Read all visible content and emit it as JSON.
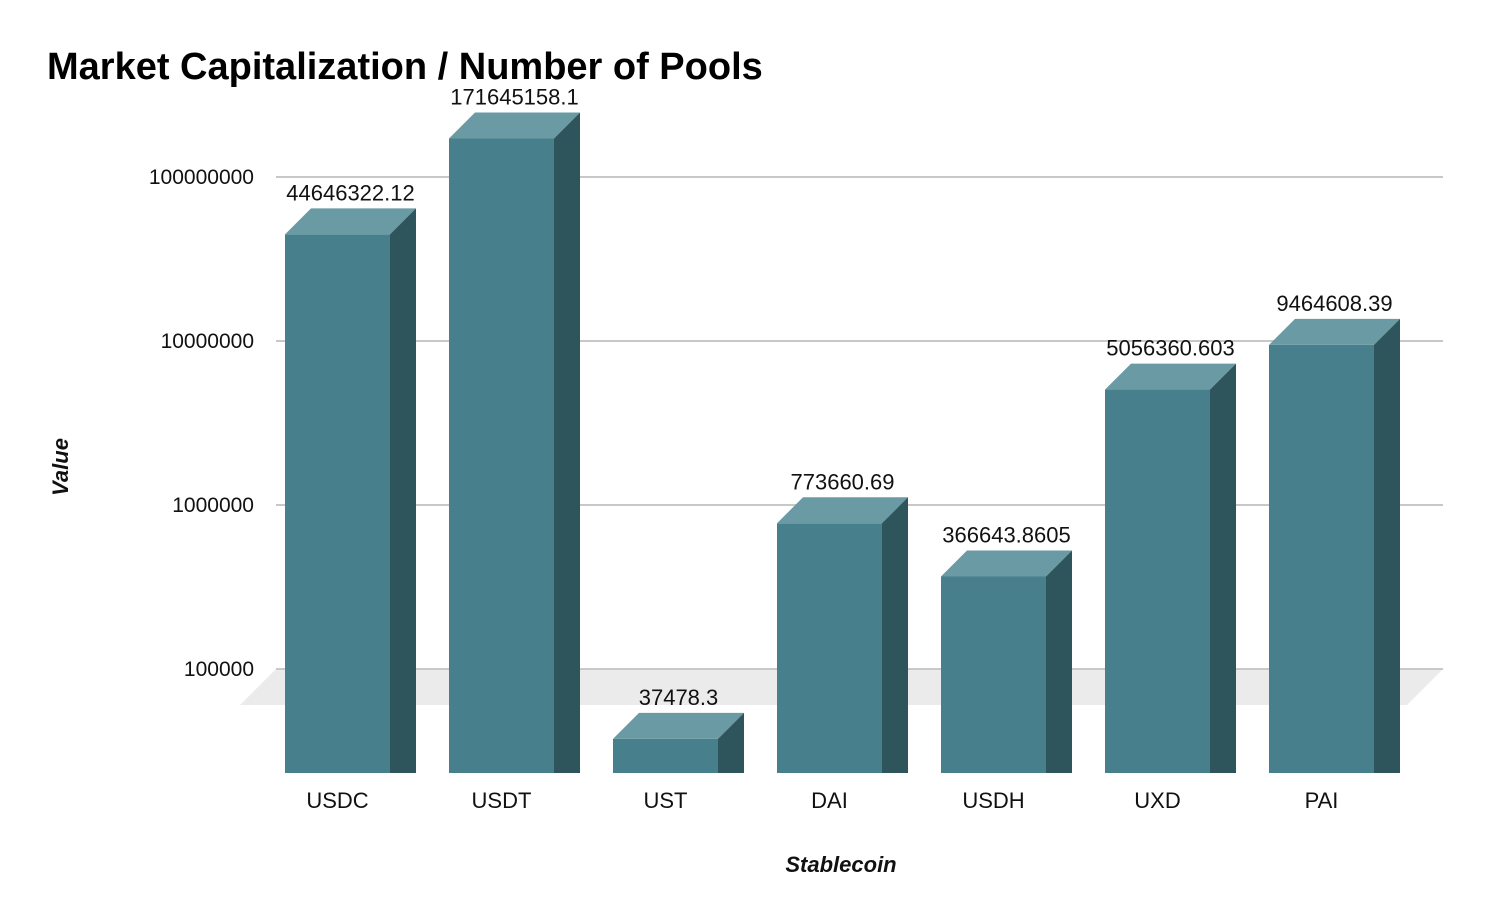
{
  "chart_data": {
    "type": "bar",
    "title": "Market Capitalization / Number of Pools",
    "xlabel": "Stablecoin",
    "ylabel": "Value",
    "y_scale": "log",
    "ylim": [
      10000,
      300000000
    ],
    "y_ticks": [
      "100000",
      "1000000",
      "10000000",
      "100000000"
    ],
    "grid": true,
    "legend": "none",
    "categories": [
      "USDC",
      "USDT",
      "UST",
      "DAI",
      "USDH",
      "UXD",
      "PAI"
    ],
    "values": [
      44646322.12,
      171645158.1,
      37478.3,
      773660.69,
      366643.8605,
      5056360.603,
      9464608.39
    ],
    "value_labels": [
      "44646322.12",
      "171645158.1",
      "37478.3",
      "773660.69",
      "366643.8605",
      "5056360.603",
      "9464608.39"
    ],
    "colors": {
      "front": "#47808c",
      "top": "#6a9aa4",
      "side": "#2e545c",
      "grid": "#c8c8c8",
      "floor": "#ebebeb"
    }
  }
}
